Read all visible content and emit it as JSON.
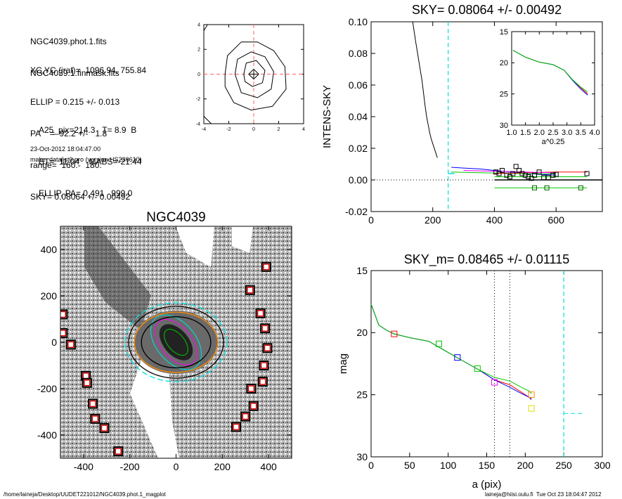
{
  "info": {
    "files": [
      "NGC4039.phot.1.fits",
      "NGC4039.1.finmask.fits"
    ],
    "params": [
      "XC,YC (iraf)=  1096.94, 755.84",
      "ELLIP = 0.215 +/- 0.013",
      "PA    =  92.2 +/-   1.8",
      "range=  160.-  180.",
      "SKY= 0.08064 +/- 0.00492"
    ],
    "phot": [
      "A25_pix=214.3   T= 8.9  B",
      "BT=  11.04    MABS=-21.44",
      "ELLIP, PA= 0.491   999.0"
    ],
    "date": "23-Oct-2012 18:04:47.00",
    "program": "make_datalist0.pro (version HS230610)"
  },
  "footer": {
    "path": "/home/laineja/Desktop/UUDET221012/NGC4039.phot.1_magplot",
    "user": "laineja@hiisi.oulu.fi  Tue Oct 23 18:04:47 2012"
  },
  "chart_data": [
    {
      "type": "line",
      "panel": "psf-contour",
      "xlim": [
        -4,
        4
      ],
      "ylim": [
        -4,
        4
      ],
      "x_ticks": [
        "-4",
        "-2",
        "0",
        "2",
        "4"
      ],
      "y_ticks": [
        "-4",
        "-2",
        "0",
        "2",
        "4"
      ],
      "contours": [
        [
          [
            -2.3,
            0
          ],
          [
            -2.1,
            1.5
          ],
          [
            -1.0,
            2.6
          ],
          [
            0.3,
            2.6
          ],
          [
            1.6,
            1.9
          ],
          [
            2.5,
            0.6
          ],
          [
            2.6,
            -1.2
          ],
          [
            1.5,
            -2.6
          ],
          [
            -0.2,
            -2.9
          ],
          [
            -1.6,
            -2.3
          ],
          [
            -2.3,
            -1.0
          ],
          [
            -2.3,
            0
          ]
        ],
        [
          [
            -1.5,
            0
          ],
          [
            -1.3,
            1.2
          ],
          [
            -0.2,
            1.8
          ],
          [
            0.9,
            1.4
          ],
          [
            1.6,
            0.2
          ],
          [
            1.4,
            -1.2
          ],
          [
            0.3,
            -1.9
          ],
          [
            -1.0,
            -1.5
          ],
          [
            -1.5,
            0
          ]
        ],
        [
          [
            -0.8,
            0
          ],
          [
            -0.6,
            0.9
          ],
          [
            0.2,
            1.1
          ],
          [
            0.9,
            0.3
          ],
          [
            0.7,
            -0.7
          ],
          [
            -0.1,
            -1.0
          ],
          [
            -0.7,
            -0.6
          ],
          [
            -0.8,
            0
          ]
        ],
        [
          [
            -0.4,
            0
          ],
          [
            0,
            0.4
          ],
          [
            0.4,
            0
          ],
          [
            0,
            -0.4
          ],
          [
            -0.4,
            0
          ]
        ],
        [
          [
            -4,
            -3.4
          ],
          [
            -3.4,
            -4
          ]
        ],
        [
          [
            -4,
            3.5
          ],
          [
            -3.7,
            4
          ]
        ]
      ]
    },
    {
      "type": "line",
      "panel": "sky-profile",
      "title": "SKY= 0.08064 +/- 0.00492",
      "ylabel": "INTENS-SKY",
      "xlim": [
        0,
        750
      ],
      "ylim": [
        -0.02,
        0.1
      ],
      "x_ticks": [
        "0",
        "200",
        "400",
        "600"
      ],
      "y_ticks": [
        "-0.02",
        "0.00",
        "0.02",
        "0.04",
        "0.06",
        "0.08",
        "0.10"
      ],
      "vline": 250,
      "series": [
        {
          "color": "#000000",
          "x": [
            135,
            145,
            155,
            165,
            170,
            175,
            180,
            185,
            190,
            195,
            200,
            205,
            210,
            215
          ],
          "y": [
            0.1,
            0.087,
            0.075,
            0.063,
            0.055,
            0.047,
            0.04,
            0.035,
            0.03,
            0.026,
            0.023,
            0.02,
            0.017,
            0.014
          ]
        },
        {
          "color": "#0000ff",
          "x": [
            260,
            300,
            350,
            400,
            450,
            500,
            550,
            600
          ],
          "y": [
            0.008,
            0.0075,
            0.007,
            0.006,
            0.005,
            0.004,
            0.0035,
            0.003
          ]
        },
        {
          "color": "#00c800",
          "x": [
            260,
            300,
            350,
            400,
            450,
            500,
            550,
            600
          ],
          "y": [
            0.005,
            0.0048,
            0.0046,
            0.0043,
            0.0041,
            0.004,
            0.0039,
            0.0038
          ]
        },
        {
          "color": "#ff0000",
          "x": [
            400,
            500,
            600,
            700
          ],
          "y": [
            0.004,
            0.0045,
            0.005,
            0.005
          ]
        },
        {
          "color": "#ff00ff",
          "x": [
            300,
            400,
            500,
            600
          ],
          "y": [
            0.006,
            0.0055,
            0.005,
            0.0045
          ]
        },
        {
          "color": "#00c800",
          "x": [
            400,
            700
          ],
          "y": [
            -0.005,
            -0.005
          ]
        },
        {
          "color": "#00c800",
          "x": [
            400,
            700
          ],
          "y": [
            0.002,
            0.002
          ]
        },
        {
          "color": "#000000",
          "x": [
            400,
            750
          ],
          "y": [
            0.0,
            0.0
          ]
        }
      ],
      "points": {
        "x": [
          405,
          415,
          425,
          440,
          450,
          460,
          470,
          480,
          490,
          500,
          510,
          520,
          530,
          545,
          560,
          575,
          590,
          600,
          700
        ],
        "y": [
          0.005,
          0.004,
          0.006,
          0.003,
          0.002,
          0.004,
          0.0085,
          0.006,
          0.004,
          0.003,
          0.002,
          0.001,
          0.003,
          0.005,
          0.0015,
          0.0015,
          0.003,
          0.0035,
          0.004
        ]
      },
      "points2": {
        "x": [
          530,
          570,
          680
        ],
        "y": [
          -0.005,
          -0.005,
          -0.005
        ]
      }
    },
    {
      "type": "line",
      "panel": "inset",
      "xlabel": "a^0.25",
      "xlim": [
        1.0,
        4.0
      ],
      "ylim": [
        30,
        15
      ],
      "x_ticks": [
        "1.0",
        "1.5",
        "2.0",
        "2.5",
        "3.0",
        "3.5",
        "4.0"
      ],
      "y_ticks": [
        "15",
        "20",
        "25",
        "30"
      ],
      "series": [
        {
          "color": "#ff0000",
          "x": [
            1.05,
            1.5,
            2.0,
            2.5,
            2.9,
            3.2,
            3.5,
            3.75
          ],
          "y": [
            18.0,
            19.1,
            19.9,
            20.3,
            21.2,
            22.7,
            24.0,
            25.0
          ]
        },
        {
          "color": "#0000ff",
          "x": [
            1.05,
            1.5,
            2.0,
            2.5,
            2.9,
            3.2,
            3.5,
            3.75
          ],
          "y": [
            18.0,
            19.1,
            19.9,
            20.3,
            21.2,
            22.8,
            24.2,
            25.2
          ]
        },
        {
          "color": "#00c800",
          "x": [
            1.05,
            1.5,
            2.0,
            2.5,
            2.9,
            3.2,
            3.5,
            3.75
          ],
          "y": [
            18.0,
            19.1,
            19.9,
            20.3,
            21.2,
            22.7,
            23.9,
            24.7
          ]
        }
      ]
    },
    {
      "type": "line",
      "panel": "mag-profile",
      "title": "SKY_m=  0.08465 +/- 0.01115",
      "xlabel": "a (pix)",
      "ylabel": "mag",
      "xlim": [
        0,
        300
      ],
      "ylim": [
        30,
        15
      ],
      "x_ticks": [
        "0",
        "50",
        "100",
        "150",
        "200",
        "250",
        "300"
      ],
      "y_ticks": [
        "15",
        "20",
        "25",
        "30"
      ],
      "dotted_vlines": [
        160,
        180
      ],
      "vline": 250,
      "series": [
        {
          "color": "#ff0000",
          "x": [
            0,
            10,
            20,
            30,
            50,
            75,
            100,
            120,
            140,
            160,
            180,
            195,
            205,
            208
          ],
          "y": [
            17.7,
            19.4,
            19.8,
            20.1,
            20.4,
            20.7,
            21.6,
            22.3,
            23.0,
            23.8,
            24.2,
            24.8,
            25.2,
            25.3
          ]
        },
        {
          "color": "#0000ff",
          "x": [
            0,
            10,
            20,
            30,
            50,
            75,
            100,
            120,
            140,
            160,
            180,
            195,
            205,
            208
          ],
          "y": [
            17.7,
            19.4,
            19.8,
            20.1,
            20.4,
            20.7,
            21.6,
            22.3,
            23.0,
            23.8,
            24.4,
            24.9,
            25.2,
            25.4
          ]
        },
        {
          "color": "#00c800",
          "x": [
            0,
            10,
            20,
            30,
            50,
            75,
            100,
            120,
            140,
            160,
            180,
            195,
            205,
            208
          ],
          "y": [
            17.7,
            19.4,
            19.8,
            20.1,
            20.4,
            20.7,
            21.6,
            22.3,
            23.0,
            23.6,
            23.9,
            24.4,
            24.7,
            24.9
          ]
        },
        {
          "color": "#00e0e0",
          "x": [
            250,
            275
          ],
          "y": [
            26.5,
            26.5
          ]
        }
      ],
      "squares": [
        {
          "x": 30,
          "y": 20.1,
          "color": "#ff0000"
        },
        {
          "x": 88,
          "y": 20.9,
          "color": "#00c800"
        },
        {
          "x": 112,
          "y": 22.0,
          "color": "#0000ff"
        },
        {
          "x": 138,
          "y": 22.9,
          "color": "#00c800"
        },
        {
          "x": 160,
          "y": 24.0,
          "color": "#ff00ff"
        },
        {
          "x": 208,
          "y": 25.0,
          "color": "#ff8c00"
        },
        {
          "x": 208,
          "y": 26.1,
          "color": "#e0e000"
        }
      ]
    },
    {
      "type": "scatter",
      "panel": "galaxy-image",
      "title": "NGC4039",
      "xlim": [
        -500,
        500
      ],
      "ylim": [
        -500,
        500
      ],
      "x_ticks": [
        "-400",
        "-200",
        "0",
        "200",
        "400"
      ],
      "y_ticks": [
        "400",
        "200",
        "0",
        "-200",
        "-400"
      ],
      "stars": [
        [
          -490,
          120
        ],
        [
          -490,
          40
        ],
        [
          -455,
          -10
        ],
        [
          -390,
          -145
        ],
        [
          -385,
          -175
        ],
        [
          -360,
          -265
        ],
        [
          -350,
          -330
        ],
        [
          -310,
          -370
        ],
        [
          -250,
          -470
        ],
        [
          320,
          225
        ],
        [
          365,
          125
        ],
        [
          385,
          60
        ],
        [
          395,
          -25
        ],
        [
          380,
          -100
        ],
        [
          375,
          -170
        ],
        [
          325,
          -200
        ],
        [
          335,
          -275
        ],
        [
          300,
          -320
        ],
        [
          260,
          -365
        ],
        [
          390,
          325
        ]
      ],
      "ellipses": [
        {
          "rx": 220,
          "ry": 170,
          "color": "#00e0e0"
        },
        {
          "rx": 205,
          "ry": 155,
          "color": "#000000"
        },
        {
          "rx": 180,
          "ry": 130,
          "color": "#ff8c00"
        },
        {
          "rx": 150,
          "ry": 110,
          "color": "#000000"
        }
      ]
    }
  ]
}
